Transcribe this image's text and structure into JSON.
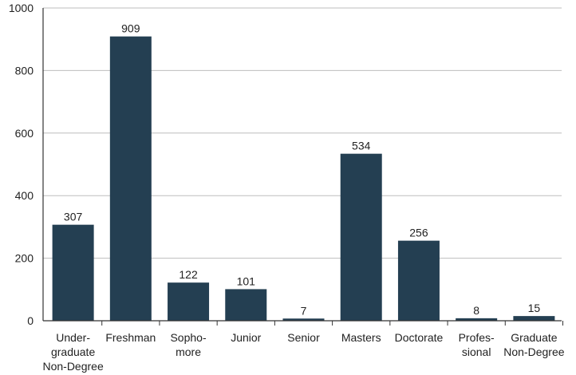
{
  "chart_data": {
    "type": "bar",
    "title": "",
    "xlabel": "",
    "ylabel": "",
    "categories": [
      [
        "Under-",
        "graduate",
        "Non-Degree"
      ],
      [
        "Freshman"
      ],
      [
        "Sopho-",
        "more"
      ],
      [
        "Junior"
      ],
      [
        "Senior"
      ],
      [
        "Masters"
      ],
      [
        "Doctorate"
      ],
      [
        "Profes-",
        "sional"
      ],
      [
        "Graduate",
        "Non-Degree"
      ]
    ],
    "values": [
      307,
      909,
      122,
      101,
      7,
      534,
      256,
      8,
      15
    ],
    "data_labels": [
      "307",
      "909",
      "122",
      "101",
      "7",
      "534",
      "256",
      "8",
      "15"
    ],
    "ylim": [
      0,
      1000
    ],
    "yticks": [
      0,
      200,
      400,
      600,
      800,
      1000
    ],
    "ytick_labels": [
      "0",
      "200",
      "400",
      "600",
      "800",
      "1000"
    ],
    "grid": true,
    "legend": "none",
    "colors": {
      "bar": "#243f52",
      "grid": "#bdbdbd",
      "axis": "#333333",
      "text": "#222222"
    }
  }
}
